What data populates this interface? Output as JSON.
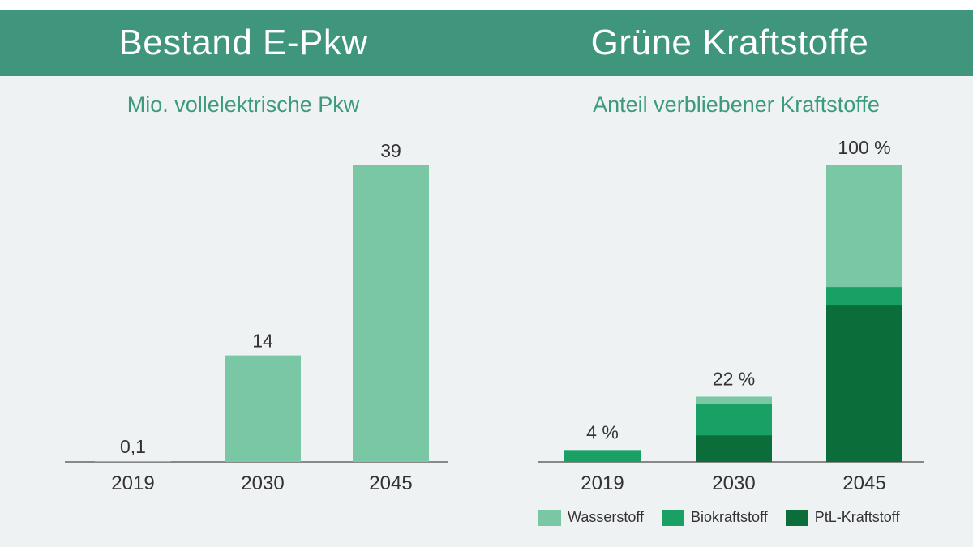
{
  "header": {
    "left_title": "Bestand E-Pkw",
    "right_title": "Grüne Kraftstoffe"
  },
  "colors": {
    "header_bg": "#3f967c",
    "subtitle": "#3d9a7f",
    "wasserstoff": "#79c7a4",
    "biokraftstoff": "#18a065",
    "ptl": "#0b6e3a",
    "bar_left": "#79c7a4",
    "axis": "#888888"
  },
  "chart_data": [
    {
      "type": "bar",
      "title": "Bestand E-Pkw",
      "subtitle": "Mio. vollelektrische Pkw",
      "categories": [
        "2019",
        "2030",
        "2045"
      ],
      "values": [
        0.1,
        14,
        39
      ],
      "value_labels": [
        "0,1",
        "14",
        "39"
      ],
      "ylim": [
        0,
        39
      ]
    },
    {
      "type": "bar",
      "stacked": true,
      "title": "Grüne Kraftstoffe",
      "subtitle": "Anteil verbliebener Kraftstoffe",
      "categories": [
        "2019",
        "2030",
        "2045"
      ],
      "series": [
        {
          "name": "PtL-Kraftstoff",
          "values": [
            0,
            9,
            53
          ]
        },
        {
          "name": "Biokraftstoff",
          "values": [
            4,
            10.5,
            6
          ]
        },
        {
          "name": "Wasserstoff",
          "values": [
            0,
            2.5,
            41
          ]
        }
      ],
      "total_labels": [
        "4 %",
        "22 %",
        "100 %"
      ],
      "ylim": [
        0,
        100
      ],
      "legend": [
        "Wasserstoff",
        "Biokraftstoff",
        "PtL-Kraftstoff"
      ],
      "legend_position": "bottom-right"
    }
  ]
}
